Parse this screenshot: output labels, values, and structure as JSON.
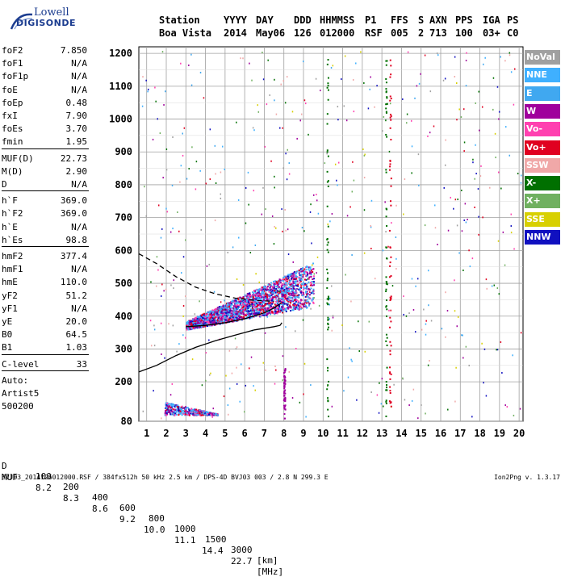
{
  "logo": {
    "line1": "Lowell",
    "line2": "DIGISONDE"
  },
  "header": {
    "labels": [
      "Station",
      "YYYY",
      "DAY",
      "DDD",
      "HHMMSS",
      "P1",
      "FFS",
      "S",
      "AXN",
      "PPS",
      "IGA",
      "PS"
    ],
    "values": [
      "Boa Vista",
      "2014",
      "May06",
      "126",
      "012000",
      "RSF",
      "005",
      "2",
      "713",
      "100",
      "03+",
      "C0"
    ]
  },
  "params": [
    {
      "name": "foF2",
      "value": "7.850"
    },
    {
      "name": "foF1",
      "value": "N/A"
    },
    {
      "name": "foF1p",
      "value": "N/A"
    },
    {
      "name": "foE",
      "value": "N/A"
    },
    {
      "name": "foEp",
      "value": "0.48"
    },
    {
      "name": "fxI",
      "value": "7.90"
    },
    {
      "name": "foEs",
      "value": "3.70"
    },
    {
      "name": "fmin",
      "value": "1.95"
    },
    {
      "name": "MUF(D)",
      "value": "22.73"
    },
    {
      "name": "M(D)",
      "value": "2.90"
    },
    {
      "name": "D",
      "value": "N/A"
    },
    {
      "name": "h`F",
      "value": "369.0"
    },
    {
      "name": "h`F2",
      "value": "369.0"
    },
    {
      "name": "h`E",
      "value": "N/A"
    },
    {
      "name": "h`Es",
      "value": "98.8"
    },
    {
      "name": "hmF2",
      "value": "377.4"
    },
    {
      "name": "hmF1",
      "value": "N/A"
    },
    {
      "name": "hmE",
      "value": "110.0"
    },
    {
      "name": "yF2",
      "value": "51.2"
    },
    {
      "name": "yF1",
      "value": "N/A"
    },
    {
      "name": "yE",
      "value": "20.0"
    },
    {
      "name": "B0",
      "value": "64.5"
    },
    {
      "name": "B1",
      "value": "1.03"
    },
    {
      "name": "C-level",
      "value": "33"
    }
  ],
  "auto": {
    "line1": "Auto:",
    "line2": "Artist5",
    "line3": "500200"
  },
  "legend": [
    {
      "label": "NoVal",
      "color": "#a0a0a0"
    },
    {
      "label": "NNE",
      "color": "#3fb0ff"
    },
    {
      "label": "E",
      "color": "#40a8f0"
    },
    {
      "label": "W",
      "color": "#a0009c"
    },
    {
      "label": "Vo-",
      "color": "#ff40b0"
    },
    {
      "label": "Vo+",
      "color": "#e00020"
    },
    {
      "label": "SSW",
      "color": "#f0a8a8"
    },
    {
      "label": "X-",
      "color": "#007000"
    },
    {
      "label": "X+",
      "color": "#70b060"
    },
    {
      "label": "SSE",
      "color": "#d8d000"
    },
    {
      "label": "NNW",
      "color": "#1010c0"
    }
  ],
  "muf_table": {
    "d_label": "D",
    "d_values": [
      "100",
      "200",
      "400",
      "600",
      "800",
      "1000",
      "1500",
      "3000"
    ],
    "d_unit": "[km]",
    "muf_label": "MUF",
    "muf_values": [
      "8.2",
      "8.3",
      "8.6",
      "9.2",
      "10.0",
      "11.1",
      "14.4",
      "22.7"
    ],
    "muf_unit": "[MHz]"
  },
  "footer": "BVJ03_2014126012000.RSF / 384fx512h 50 kHz 2.5 km / DPS-4D BVJ03 003 / 2.8 N 299.3 E",
  "version": "Ion2Png v. 1.3.17",
  "chart_data": {
    "type": "scatter",
    "x_ticks": [
      "1",
      "2",
      "3",
      "4",
      "5",
      "6",
      "7",
      "8",
      "9",
      "10",
      "11",
      "12",
      "13",
      "14",
      "15",
      "16",
      "17",
      "18",
      "19",
      "20"
    ],
    "y_ticks": [
      "80",
      "200",
      "300",
      "400",
      "500",
      "600",
      "700",
      "800",
      "900",
      "1000",
      "1100",
      "1200"
    ],
    "xlim": [
      0.6,
      20.2
    ],
    "ylim": [
      80,
      1220
    ],
    "grid": true,
    "legend_position": "right",
    "series": [
      {
        "kind": "profile_solid",
        "points": [
          [
            0.6,
            230
          ],
          [
            1.5,
            250
          ],
          [
            2.5,
            280
          ],
          [
            3.5,
            305
          ],
          [
            4.5,
            325
          ],
          [
            5.5,
            342
          ],
          [
            6.5,
            358
          ],
          [
            7.5,
            368
          ],
          [
            7.8,
            372
          ],
          [
            7.9,
            380
          ]
        ]
      },
      {
        "kind": "trace_solid",
        "points": [
          [
            3.0,
            368
          ],
          [
            4.0,
            372
          ],
          [
            5.0,
            380
          ],
          [
            6.0,
            392
          ],
          [
            7.0,
            410
          ],
          [
            7.5,
            425
          ],
          [
            7.85,
            440
          ]
        ]
      },
      {
        "kind": "profile_dashed",
        "points": [
          [
            0.6,
            590
          ],
          [
            1.5,
            560
          ],
          [
            2.5,
            520
          ],
          [
            3.5,
            488
          ],
          [
            4.5,
            468
          ],
          [
            5.5,
            455
          ],
          [
            6.5,
            448
          ],
          [
            7.5,
            445
          ]
        ]
      }
    ]
  }
}
